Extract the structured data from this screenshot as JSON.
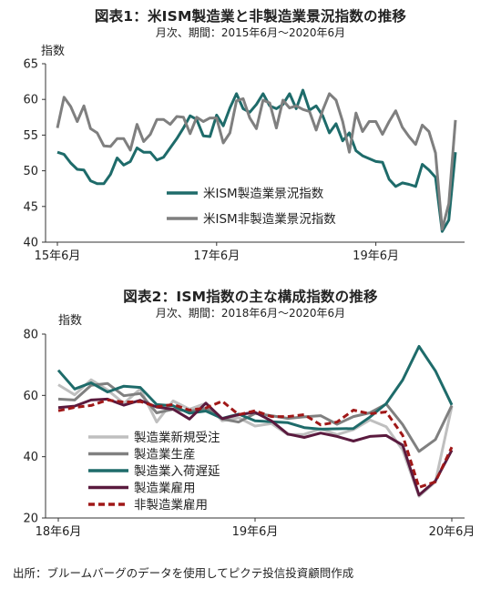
{
  "chart_data": [
    {
      "type": "line",
      "title": "図表1：米ISM製造業と非製造業景況指数の推移",
      "subtitle": "月次、期間：2015年6月～2020年6月",
      "ylabel": "指数",
      "ylim": [
        40,
        65
      ],
      "yticks": [
        40,
        45,
        50,
        55,
        60,
        65
      ],
      "xtick_labels": [
        {
          "label": "15年6月",
          "index": 0
        },
        {
          "label": "17年6月",
          "index": 24
        },
        {
          "label": "19年6月",
          "index": 48
        }
      ],
      "grid": false,
      "legend_position": "lower-center",
      "series": [
        {
          "name": "米ISM製造業景況指数",
          "color": "#1e6b6a",
          "values": [
            52.6,
            52.3,
            51.1,
            50.2,
            50.1,
            48.6,
            48.2,
            48.2,
            49.5,
            51.8,
            50.8,
            51.3,
            53.2,
            52.6,
            52.6,
            51.5,
            51.9,
            53.2,
            54.5,
            56.0,
            57.7,
            57.2,
            54.9,
            54.8,
            57.8,
            56.3,
            58.8,
            60.8,
            58.7,
            58.2,
            59.3,
            60.8,
            59.1,
            58.7,
            59.3,
            60.8,
            58.7,
            61.3,
            58.5,
            59.1,
            57.7,
            55.3,
            56.6,
            54.2,
            55.3,
            52.8,
            52.1,
            51.7,
            51.3,
            51.2,
            48.8,
            47.8,
            48.3,
            48.1,
            47.8,
            50.9,
            50.1,
            49.1,
            41.5,
            43.1,
            52.6
          ]
        },
        {
          "name": "米ISM非製造業景況指数",
          "color": "#7f7f7f",
          "values": [
            56.0,
            60.3,
            59.0,
            56.9,
            59.1,
            55.9,
            55.3,
            53.5,
            53.4,
            54.5,
            54.5,
            52.9,
            56.5,
            54.1,
            55.1,
            57.2,
            57.2,
            56.5,
            57.6,
            57.5,
            55.2,
            57.5,
            56.9,
            57.4,
            57.4,
            53.9,
            55.3,
            59.8,
            60.1,
            57.4,
            55.9,
            59.9,
            59.5,
            56.0,
            59.9,
            58.8,
            59.1,
            58.6,
            58.3,
            55.7,
            58.5,
            60.8,
            59.9,
            56.9,
            52.6,
            58.1,
            55.5,
            56.9,
            56.9,
            55.1,
            56.9,
            58.4,
            56.1,
            54.8,
            53.7,
            56.4,
            55.5,
            52.5,
            41.8,
            45.4,
            57.1
          ]
        }
      ]
    },
    {
      "type": "line",
      "title": "図表2：ISM指数の主な構成指数の推移",
      "subtitle": "月次、期間：2018年6月～2020年6月",
      "ylabel": "指数",
      "ylim": [
        20,
        80
      ],
      "yticks": [
        20,
        40,
        60,
        80
      ],
      "xtick_labels": [
        {
          "label": "18年6月",
          "index": 0
        },
        {
          "label": "19年6月",
          "index": 12
        },
        {
          "label": "20年6月",
          "index": 24
        }
      ],
      "grid": false,
      "legend_position": "lower-center",
      "series": [
        {
          "name": "製造業新規受注",
          "color": "#bfbfbf",
          "style": "solid",
          "values": [
            63.5,
            60.2,
            65.1,
            61.8,
            57.4,
            62.1,
            51.3,
            58.2,
            55.5,
            57.4,
            51.7,
            52.7,
            50.0,
            50.8,
            47.2,
            47.3,
            49.1,
            47.2,
            48.8,
            52.0,
            49.8,
            42.2,
            27.1,
            31.8,
            56.4
          ]
        },
        {
          "name": "製造業生産",
          "color": "#808080",
          "style": "solid",
          "values": [
            58.8,
            58.5,
            63.3,
            63.9,
            59.9,
            60.6,
            54.3,
            55.5,
            54.8,
            55.8,
            52.3,
            51.3,
            54.1,
            53.4,
            52.5,
            53.0,
            53.4,
            50.6,
            53.1,
            54.3,
            57.2,
            50.5,
            41.7,
            45.6,
            56.7
          ]
        },
        {
          "name": "製造業入荷遅延",
          "color": "#1e6b6a",
          "style": "solid",
          "values": [
            68.2,
            62.1,
            64.1,
            61.1,
            63.0,
            62.6,
            57.0,
            56.6,
            54.2,
            54.9,
            52.5,
            53.9,
            51.7,
            51.4,
            51.1,
            49.5,
            49.0,
            49.1,
            49.2,
            52.9,
            57.3,
            65.0,
            76.0,
            68.0,
            56.9
          ]
        },
        {
          "name": "製造業雇用",
          "color": "#5a1a3e",
          "style": "solid",
          "values": [
            56.0,
            56.5,
            58.5,
            58.8,
            56.8,
            58.4,
            56.2,
            55.5,
            52.3,
            57.5,
            52.4,
            53.7,
            54.5,
            51.7,
            47.4,
            46.3,
            47.7,
            46.6,
            45.1,
            46.6,
            46.9,
            43.8,
            27.5,
            32.1,
            42.1
          ]
        },
        {
          "name": "非製造業雇用",
          "color": "#a01818",
          "style": "dashed",
          "values": [
            55.0,
            56.1,
            56.7,
            58.5,
            57.8,
            58.0,
            56.3,
            57.0,
            55.2,
            55.9,
            58.1,
            53.7,
            55.0,
            53.1,
            53.1,
            53.7,
            50.4,
            51.3,
            55.2,
            54.0,
            54.6,
            47.0,
            30.0,
            31.8,
            43.1
          ]
        }
      ]
    }
  ],
  "source": "出所：ブルームバーグのデータを使用してピクテ投信投資顧問作成"
}
